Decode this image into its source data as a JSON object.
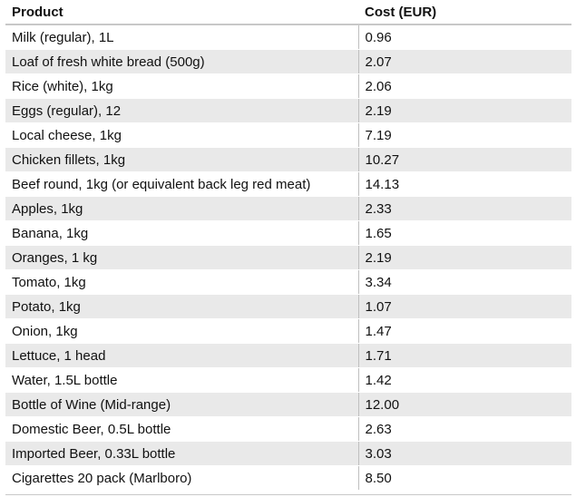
{
  "table": {
    "headers": [
      "Product",
      "Cost (EUR)"
    ],
    "rows": [
      {
        "product": "Milk (regular), 1L",
        "cost": "0.96"
      },
      {
        "product": "Loaf of fresh white bread (500g)",
        "cost": "2.07"
      },
      {
        "product": "Rice (white), 1kg",
        "cost": "2.06"
      },
      {
        "product": "Eggs (regular), 12",
        "cost": "2.19"
      },
      {
        "product": "Local cheese, 1kg",
        "cost": "7.19"
      },
      {
        "product": "Chicken fillets, 1kg",
        "cost": "10.27"
      },
      {
        "product": "Beef round, 1kg (or equivalent back leg red meat)",
        "cost": "14.13"
      },
      {
        "product": "Apples, 1kg",
        "cost": "2.33"
      },
      {
        "product": "Banana, 1kg",
        "cost": "1.65"
      },
      {
        "product": "Oranges, 1 kg",
        "cost": "2.19"
      },
      {
        "product": "Tomato, 1kg",
        "cost": "3.34"
      },
      {
        "product": "Potato, 1kg",
        "cost": "1.07"
      },
      {
        "product": "Onion, 1kg",
        "cost": "1.47"
      },
      {
        "product": "Lettuce, 1 head",
        "cost": "1.71"
      },
      {
        "product": "Water, 1.5L bottle",
        "cost": "1.42"
      },
      {
        "product": "Bottle of Wine (Mid-range)",
        "cost": "12.00"
      },
      {
        "product": "Domestic Beer, 0.5L bottle",
        "cost": "2.63"
      },
      {
        "product": "Imported Beer, 0.33L bottle",
        "cost": "3.03"
      },
      {
        "product": "Cigarettes 20 pack (Marlboro)",
        "cost": "8.50"
      }
    ]
  },
  "colors": {
    "even_row": "#e9e9e9",
    "odd_row": "#ffffff",
    "rule": "#c8c8c8"
  }
}
